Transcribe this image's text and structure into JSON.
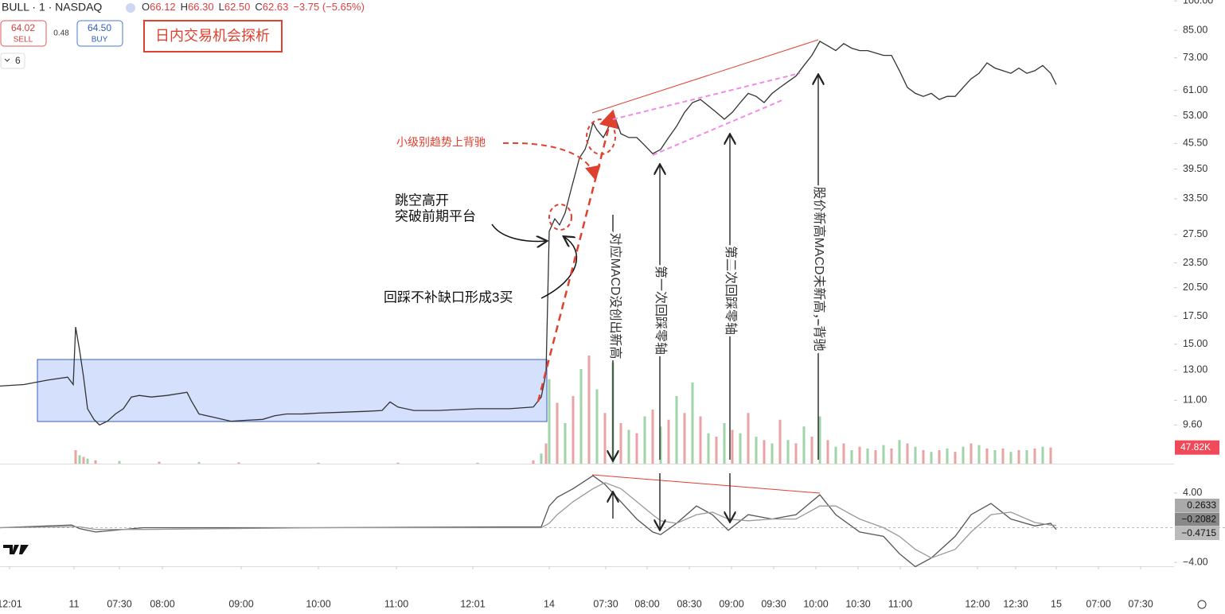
{
  "header": {
    "symbol": "BULL · 1 · NASDAQ",
    "ohlc": [
      {
        "key": "O",
        "value": "66.12"
      },
      {
        "key": "H",
        "value": "66.30"
      },
      {
        "key": "L",
        "value": "62.50"
      },
      {
        "key": "C",
        "value": "62.63"
      }
    ],
    "change": "−3.75 (−5.65%)",
    "sell": {
      "price": "64.02",
      "label": "SELL"
    },
    "spread": "0.48",
    "buy": {
      "price": "64.50",
      "label": "BUY"
    },
    "interval": "6",
    "title": "日内交易机会探析"
  },
  "annotations": {
    "divergence_small": "小级别趋势上背驰",
    "gap_up": [
      "跳空高开",
      "突破前期平台"
    ],
    "pullback": "回踩不补缺口形成3买",
    "arrow1": "对应MACD没创出新高",
    "arrow2": "第一次回踩零轴",
    "arrow3": "第二次回踩零轴",
    "arrow4": "股价新高MACD未新高，背驰"
  },
  "chart_data": [
    {
      "type": "line",
      "log_scale": true,
      "color": "#333333",
      "xlim": [
        0,
        1475
      ],
      "ylim": [
        7.75,
        100.5
      ],
      "xticks": [
        {
          "value": 12,
          "label": "12:01"
        },
        {
          "value": 93,
          "label": "11"
        },
        {
          "value": 150,
          "label": "07:30"
        },
        {
          "value": 204,
          "label": "08:00"
        },
        {
          "value": 303,
          "label": "09:00"
        },
        {
          "value": 400,
          "label": "10:00"
        },
        {
          "value": 498,
          "label": "11:00"
        },
        {
          "value": 594,
          "label": "12:01"
        },
        {
          "value": 690,
          "label": "14"
        },
        {
          "value": 761,
          "label": "07:30"
        },
        {
          "value": 813,
          "label": "08:00"
        },
        {
          "value": 866,
          "label": "08:30"
        },
        {
          "value": 919,
          "label": "09:00"
        },
        {
          "value": 972,
          "label": "09:30"
        },
        {
          "value": 1025,
          "label": "10:00"
        },
        {
          "value": 1078,
          "label": "10:30"
        },
        {
          "value": 1131,
          "label": "11:00"
        },
        {
          "value": 1228,
          "label": "12:00"
        },
        {
          "value": 1276,
          "label": "12:30"
        },
        {
          "value": 1327,
          "label": "15"
        },
        {
          "value": 1380,
          "label": "07:00"
        },
        {
          "value": 1433,
          "label": "07:30"
        }
      ],
      "yticks": [
        {
          "value": 9.6,
          "label": "9.60"
        },
        {
          "value": 11,
          "label": "11.00"
        },
        {
          "value": 13,
          "label": "13.00"
        },
        {
          "value": 15,
          "label": "15.00"
        },
        {
          "value": 17.5,
          "label": "17.50"
        },
        {
          "value": 20.5,
          "label": "20.50"
        },
        {
          "value": 23.5,
          "label": "23.50"
        },
        {
          "value": 27.5,
          "label": "27.50"
        },
        {
          "value": 33.5,
          "label": "33.50"
        },
        {
          "value": 39.5,
          "label": "39.50"
        },
        {
          "value": 45.5,
          "label": "45.50"
        },
        {
          "value": 53,
          "label": "53.00"
        },
        {
          "value": 61,
          "label": "61.00"
        },
        {
          "value": 73,
          "label": "73.00"
        },
        {
          "value": 85,
          "label": "85.00"
        },
        {
          "value": 100,
          "label": "100.00"
        }
      ],
      "x": [
        0,
        30,
        60,
        85,
        92,
        95,
        100,
        105,
        110,
        118,
        125,
        135,
        145,
        155,
        165,
        175,
        190,
        210,
        235,
        240,
        250,
        270,
        290,
        310,
        330,
        345,
        360,
        380,
        400,
        430,
        460,
        480,
        490,
        500,
        520,
        550,
        600,
        640,
        670,
        680,
        686,
        690,
        697,
        703,
        710,
        717,
        722,
        728,
        735,
        740,
        745,
        750,
        758,
        765,
        772,
        780,
        790,
        800,
        810,
        820,
        830,
        840,
        850,
        860,
        870,
        880,
        890,
        900,
        910,
        920,
        930,
        940,
        950,
        960,
        970,
        980,
        990,
        1000,
        1010,
        1020,
        1030,
        1040,
        1050,
        1060,
        1070,
        1080,
        1090,
        1100,
        1110,
        1120,
        1130,
        1140,
        1150,
        1160,
        1170,
        1180,
        1190,
        1200,
        1210,
        1220,
        1230,
        1240,
        1250,
        1260,
        1270,
        1280,
        1290,
        1300,
        1310,
        1320,
        1327
      ],
      "values": [
        11.9,
        12.0,
        12.3,
        12.5,
        12.0,
        16.5,
        14.5,
        12.5,
        10.5,
        9.9,
        9.6,
        9.8,
        10.2,
        10.5,
        11.2,
        11.3,
        11.2,
        11.3,
        11.5,
        11.0,
        10.2,
        10.0,
        9.8,
        9.85,
        9.9,
        10.1,
        10.2,
        10.2,
        10.25,
        10.3,
        10.35,
        10.4,
        10.9,
        10.6,
        10.4,
        10.4,
        10.5,
        10.5,
        10.6,
        11.2,
        12.8,
        28,
        30,
        29,
        31,
        35,
        38,
        42,
        44,
        47,
        51,
        49,
        47,
        50,
        53,
        48,
        47,
        47,
        45,
        43,
        44,
        47,
        50,
        54,
        57,
        58,
        56,
        54,
        52,
        54,
        57,
        60,
        59,
        57,
        60,
        62,
        64,
        66,
        70,
        74,
        80,
        78,
        76,
        79,
        77,
        76,
        76,
        75,
        74,
        74,
        68,
        62,
        60,
        59,
        60,
        58,
        59,
        59,
        62,
        65,
        67,
        71,
        69,
        68,
        67,
        69,
        67,
        68,
        70,
        67,
        63
      ]
    },
    {
      "type": "bar",
      "colors": [
        "#e9a3a3",
        "#9fd3a8"
      ],
      "ylim": [
        0,
        400
      ],
      "last_label": "47.82K",
      "x": [
        95,
        100,
        105,
        110,
        120,
        150,
        200,
        250,
        300,
        400,
        500,
        600,
        670,
        680,
        686,
        690,
        700,
        710,
        720,
        730,
        740,
        750,
        760,
        770,
        780,
        790,
        800,
        810,
        820,
        830,
        840,
        850,
        860,
        870,
        880,
        890,
        900,
        910,
        920,
        930,
        940,
        950,
        960,
        970,
        980,
        990,
        1000,
        1010,
        1020,
        1030,
        1040,
        1050,
        1060,
        1070,
        1080,
        1090,
        1100,
        1110,
        1120,
        1130,
        1140,
        1150,
        1160,
        1170,
        1180,
        1190,
        1200,
        1210,
        1220,
        1230,
        1240,
        1250,
        1260,
        1270,
        1280,
        1290,
        1300,
        1310,
        1320
      ],
      "values": [
        40,
        25,
        20,
        15,
        10,
        8,
        6,
        5,
        4,
        3,
        3,
        3,
        10,
        30,
        60,
        250,
        180,
        120,
        200,
        280,
        320,
        220,
        150,
        300,
        120,
        100,
        90,
        140,
        160,
        110,
        130,
        200,
        150,
        240,
        140,
        90,
        80,
        120,
        100,
        90,
        150,
        80,
        70,
        60,
        130,
        70,
        60,
        110,
        80,
        140,
        70,
        50,
        60,
        40,
        50,
        45,
        40,
        55,
        45,
        70,
        60,
        50,
        40,
        35,
        40,
        45,
        35,
        50,
        60,
        55,
        45,
        40,
        45,
        35,
        40,
        40,
        45,
        50,
        47.82
      ]
    },
    {
      "type": "line",
      "ylim": [
        -4.45,
        7.29
      ],
      "yticks": [
        {
          "value": 4,
          "label": "4.00"
        },
        {
          "value": -4,
          "label": "−4.00"
        }
      ],
      "badges": [
        {
          "value": 0.2633,
          "label": "0.2633"
        },
        {
          "value": -0.2082,
          "label": "−0.2082"
        },
        {
          "value": -0.4715,
          "label": "−0.4715"
        }
      ],
      "x": [
        0,
        90,
        100,
        120,
        180,
        400,
        680,
        690,
        700,
        720,
        745,
        760,
        780,
        800,
        820,
        830,
        850,
        875,
        895,
        915,
        940,
        970,
        1000,
        1030,
        1050,
        1080,
        1110,
        1130,
        1150,
        1170,
        1200,
        1220,
        1245,
        1270,
        1300,
        1320,
        1327
      ],
      "series": [
        {
          "color": "#555555",
          "values": [
            0,
            0.3,
            -0.1,
            -0.5,
            0,
            0,
            0.1,
            2.5,
            3.5,
            4.5,
            6,
            5,
            3,
            1,
            -0.5,
            -0.8,
            0.5,
            2.5,
            1.5,
            -0.3,
            1.5,
            1,
            1.5,
            3.8,
            1.5,
            -0.5,
            -1,
            -3,
            -4.5,
            -3.5,
            -1,
            1.5,
            2.8,
            1,
            0.2,
            0.5,
            -0.2
          ]
        },
        {
          "color": "#999999",
          "values": [
            0,
            0.1,
            0.1,
            -0.2,
            -0.2,
            0,
            0,
            0.5,
            1.5,
            3,
            4.5,
            5.2,
            4.5,
            3,
            1.5,
            0.8,
            0.5,
            1.5,
            1.8,
            1,
            0.8,
            1,
            1,
            2.5,
            2.5,
            1,
            0,
            -1,
            -2.5,
            -3.5,
            -2.5,
            -0.5,
            1.5,
            1.8,
            0.6,
            0.3,
            0.26
          ]
        }
      ]
    }
  ]
}
